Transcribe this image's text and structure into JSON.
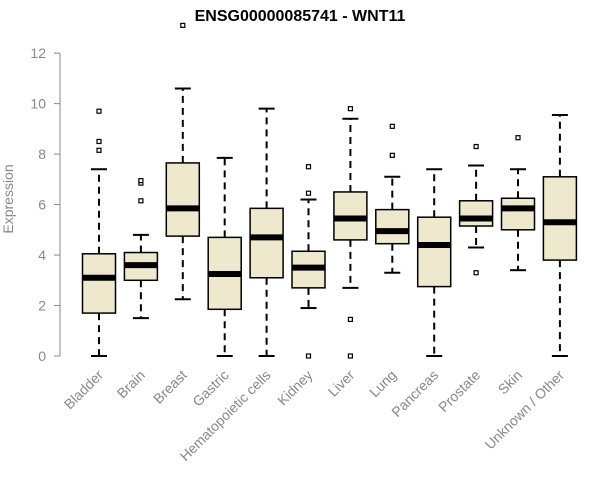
{
  "chart_data": {
    "type": "box",
    "title": "ENSG00000085741 - WNT11",
    "ylabel": "Expression",
    "xlabel": "",
    "ylim": [
      0,
      12.6
    ],
    "yticks": [
      0,
      2,
      4,
      6,
      8,
      10,
      12
    ],
    "grid": false,
    "colors": {
      "box_fill": "#EEE8CD",
      "stroke": "#000000",
      "axis": "#888888"
    },
    "categories": [
      "Bladder",
      "Brain",
      "Breast",
      "Gastric",
      "Hematopoietic cells",
      "Kidney",
      "Liver",
      "Lung",
      "Pancreas",
      "Prostate",
      "Skin",
      "Unknown / Other"
    ],
    "boxes": [
      {
        "whisker_low": 0.0,
        "q1": 1.7,
        "median": 3.1,
        "q3": 4.05,
        "whisker_high": 7.4,
        "outliers": [
          8.15,
          8.5,
          9.7
        ]
      },
      {
        "whisker_low": 1.5,
        "q1": 3.0,
        "median": 3.6,
        "q3": 4.1,
        "whisker_high": 4.8,
        "outliers": [
          6.15,
          6.85,
          6.95
        ]
      },
      {
        "whisker_low": 2.25,
        "q1": 4.75,
        "median": 5.85,
        "q3": 7.65,
        "whisker_high": 10.6,
        "outliers": [
          13.1
        ]
      },
      {
        "whisker_low": 0.0,
        "q1": 1.85,
        "median": 3.25,
        "q3": 4.7,
        "whisker_high": 7.85,
        "outliers": []
      },
      {
        "whisker_low": 0.0,
        "q1": 3.1,
        "median": 4.7,
        "q3": 5.85,
        "whisker_high": 9.8,
        "outliers": []
      },
      {
        "whisker_low": 1.9,
        "q1": 2.7,
        "median": 3.5,
        "q3": 4.15,
        "whisker_high": 6.2,
        "outliers": [
          0.0,
          6.45,
          7.5
        ]
      },
      {
        "whisker_low": 2.7,
        "q1": 4.6,
        "median": 5.45,
        "q3": 6.5,
        "whisker_high": 9.4,
        "outliers": [
          0.0,
          1.45,
          9.8
        ]
      },
      {
        "whisker_low": 3.3,
        "q1": 4.45,
        "median": 4.95,
        "q3": 5.8,
        "whisker_high": 7.1,
        "outliers": [
          7.95,
          9.1
        ]
      },
      {
        "whisker_low": 0.0,
        "q1": 2.75,
        "median": 4.4,
        "q3": 5.5,
        "whisker_high": 7.4,
        "outliers": []
      },
      {
        "whisker_low": 4.3,
        "q1": 5.15,
        "median": 5.45,
        "q3": 6.15,
        "whisker_high": 7.55,
        "outliers": [
          3.3,
          8.3
        ]
      },
      {
        "whisker_low": 3.4,
        "q1": 5.0,
        "median": 5.85,
        "q3": 6.25,
        "whisker_high": 7.4,
        "outliers": [
          8.65
        ]
      },
      {
        "whisker_low": 0.0,
        "q1": 3.8,
        "median": 5.3,
        "q3": 7.1,
        "whisker_high": 9.55,
        "outliers": []
      }
    ]
  }
}
